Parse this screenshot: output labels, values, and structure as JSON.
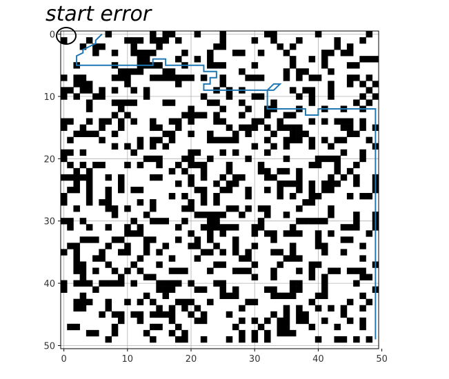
{
  "annotation": {
    "text": "start error",
    "circled_cell_label": "0"
  },
  "chart_data": {
    "type": "heatmap",
    "title": "",
    "xlabel": "",
    "ylabel": "",
    "xlim": [
      -0.5,
      49.5
    ],
    "ylim": [
      50.5,
      -0.5
    ],
    "xticks": [
      0,
      10,
      20,
      30,
      40,
      50
    ],
    "yticks": [
      0,
      10,
      20,
      30,
      40,
      50
    ],
    "grid": true,
    "colormap": {
      "0": "#ffffff",
      "1": "#000000"
    },
    "grid_size": [
      50,
      50
    ],
    "obstacle_density": 0.3,
    "series": [
      {
        "color": "#1f77b4",
        "points": [
          [
            6,
            0
          ],
          [
            5,
            1
          ],
          [
            5,
            1.5
          ],
          [
            4,
            2
          ],
          [
            3,
            2.5
          ],
          [
            3,
            3
          ],
          [
            2,
            3.5
          ],
          [
            2,
            5
          ],
          [
            14,
            5
          ],
          [
            14,
            4
          ],
          [
            16,
            4
          ],
          [
            16,
            5
          ],
          [
            22,
            5
          ],
          [
            22,
            6
          ],
          [
            24,
            6
          ],
          [
            24,
            7
          ],
          [
            23,
            7
          ],
          [
            23,
            8
          ],
          [
            22,
            8
          ],
          [
            22,
            9
          ],
          [
            32,
            9
          ],
          [
            33,
            8
          ],
          [
            34,
            8
          ],
          [
            33,
            9
          ],
          [
            32,
            9
          ],
          [
            32,
            12
          ],
          [
            38,
            12
          ],
          [
            38,
            13
          ],
          [
            40,
            13
          ],
          [
            40,
            12
          ],
          [
            49,
            12
          ],
          [
            49,
            49
          ]
        ]
      }
    ]
  }
}
